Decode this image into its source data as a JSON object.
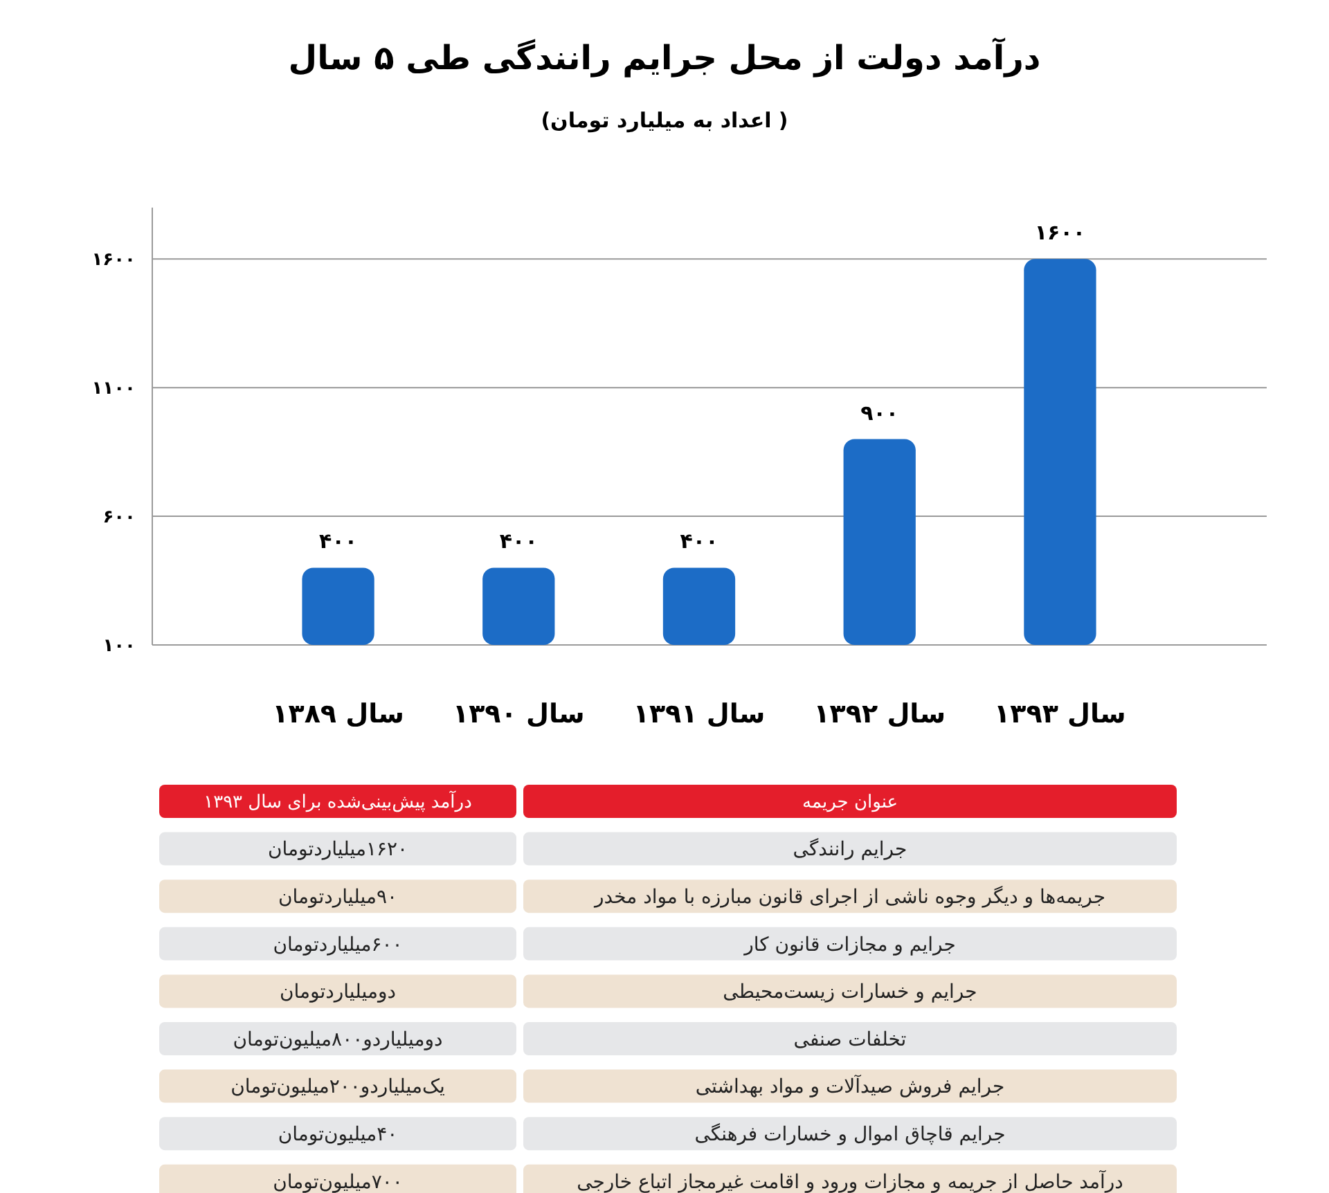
{
  "chart_data": [
    {
      "type": "bar",
      "title": "درآمد دولت از محل جرایم رانندگی طی ۵ سال",
      "subtitle": "( اعداد به میلیارد تومان)",
      "categories": [
        "سال ۱۳۸۹",
        "سال ۱۳۹۰",
        "سال ۱۳۹۱",
        "سال ۱۳۹۲",
        "سال ۱۳۹۳"
      ],
      "values": [
        400,
        400,
        400,
        900,
        1600
      ],
      "value_labels": [
        "۴۰۰",
        "۴۰۰",
        "۴۰۰",
        "۹۰۰",
        "۱۶۰۰"
      ],
      "color": "#1c6cc6",
      "ylim": [
        100,
        1800
      ],
      "yticks": [
        {
          "value": 100,
          "label": "۱۰۰"
        },
        {
          "value": 600,
          "label": "۶۰۰"
        },
        {
          "value": 1100,
          "label": "۱۱۰۰"
        },
        {
          "value": 1600,
          "label": "۱۶۰۰"
        }
      ],
      "grid": "y"
    },
    {
      "type": "other",
      "annotations": [
        "عنوان جریمه",
        "درآمد پیش‌بینی‌شده برای سال ۱۳۹۳",
        "جرایم رانندگی",
        "۱۶۲۰میلیاردتومان",
        "جریمه‌ها و دیگر وجوه ناشی از اجرای قانون مبارزه با مواد مخدر",
        "۹۰میلیاردتومان",
        "جرایم و مجازات قانون کار",
        "۶۰۰میلیاردتومان",
        "جرایم و خسارات زیست‌محیطی",
        "دومیلیاردتومان",
        "تخلفات صنفی",
        "دومیلیاردو۸۰۰میلیون‌تومان",
        "جرایم فروش صیدآلات و مواد بهداشتی",
        "یک‌میلیاردو۲۰۰میلیون‌تومان",
        "جرایم قاچاق اموال و خسارات فرهنگی",
        "۴۰میلیون‌تومان",
        "درآمد حاصل از جریمه و مجازات ورود و اقامت غیرمجاز اتباع خارجی",
        "۷۰۰میلیون‌تومان"
      ]
    }
  ]
}
